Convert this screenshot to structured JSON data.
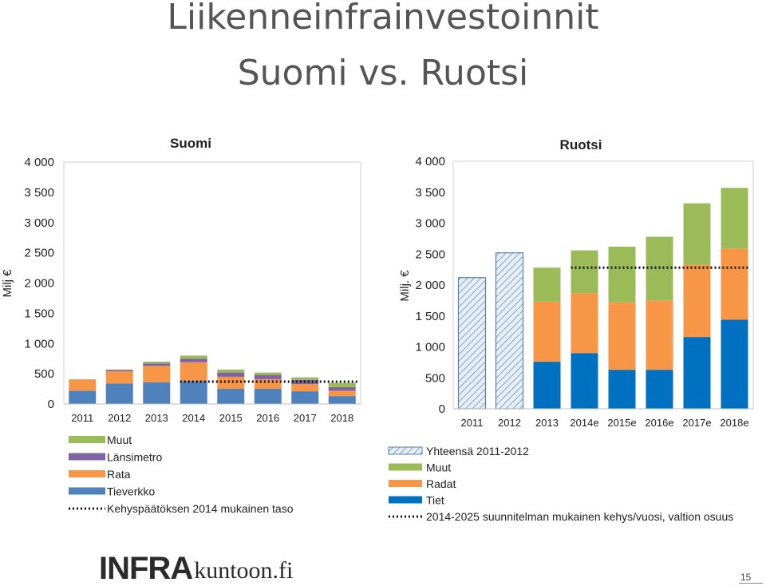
{
  "slide": {
    "title_line1": "Liikenneinfrainvestoinnit",
    "title_line2": "Suomi vs. Ruotsi",
    "logo_bold": "INFRA",
    "logo_rest": "kuntoon.fi",
    "page_number": "15"
  },
  "chart_data": [
    {
      "type": "bar",
      "stacked": true,
      "title": "Suomi",
      "ylabel": "Milj €",
      "ylim": [
        0,
        4000
      ],
      "yticks": [
        0,
        500,
        1000,
        1500,
        2000,
        2500,
        3000,
        3500,
        4000
      ],
      "ytick_labels": [
        "0",
        "500",
        "1 000",
        "1 500",
        "2 000",
        "2 500",
        "3 000",
        "3 500",
        "4 000"
      ],
      "categories": [
        "2011",
        "2012",
        "2013",
        "2014",
        "2015",
        "2016",
        "2017",
        "2018"
      ],
      "series": [
        {
          "name": "Tieverkko",
          "color": "#4f81bd",
          "values": [
            220,
            340,
            360,
            380,
            250,
            250,
            210,
            130
          ]
        },
        {
          "name": "Rata",
          "color": "#f79646",
          "values": [
            180,
            200,
            270,
            310,
            200,
            160,
            120,
            90
          ]
        },
        {
          "name": "Länsimetro",
          "color": "#8064a2",
          "values": [
            0,
            20,
            40,
            60,
            70,
            70,
            70,
            60
          ]
        },
        {
          "name": "Muut",
          "color": "#9bbb59",
          "values": [
            10,
            10,
            30,
            50,
            50,
            40,
            40,
            70
          ]
        }
      ],
      "reference_line": {
        "name": "Kehyspäätöksen 2014 mukainen taso",
        "value": 370,
        "from": "2014",
        "to": "2018"
      },
      "legend_order": [
        "Muut",
        "Länsimetro",
        "Rata",
        "Tieverkko",
        "Kehyspäätöksen 2014 mukainen taso"
      ],
      "legend_position": "bottom"
    },
    {
      "type": "bar",
      "stacked": true,
      "title": "Ruotsi",
      "ylabel": "Milj. €",
      "ylim": [
        0,
        4000
      ],
      "yticks": [
        0,
        500,
        1000,
        1500,
        2000,
        2500,
        3000,
        3500,
        4000
      ],
      "ytick_labels": [
        "0",
        "500",
        "1 000",
        "1 500",
        "2 000",
        "2 500",
        "3 000",
        "3 500",
        "4 000"
      ],
      "categories": [
        "2011",
        "2012",
        "2013",
        "2014e",
        "2015e",
        "2016e",
        "2017e",
        "2018e"
      ],
      "series": [
        {
          "name": "Yhteensä 2011-2012",
          "color": "#dbe5f1",
          "pattern": "hatch",
          "values": [
            2120,
            2520,
            0,
            0,
            0,
            0,
            0,
            0
          ]
        },
        {
          "name": "Tiet",
          "color": "#0070c0",
          "values": [
            0,
            0,
            760,
            900,
            630,
            630,
            1160,
            1440
          ]
        },
        {
          "name": "Radat",
          "color": "#f79646",
          "values": [
            0,
            0,
            970,
            970,
            1090,
            1120,
            1170,
            1150
          ]
        },
        {
          "name": "Muut",
          "color": "#9bbb59",
          "values": [
            0,
            0,
            550,
            690,
            900,
            1030,
            990,
            980
          ]
        }
      ],
      "reference_line": {
        "name": "2014-2025 suunnitelman mukainen kehys/vuosi, valtion osuus",
        "value": 2280,
        "from": "2014e",
        "to": "2018e"
      },
      "legend_order": [
        "Yhteensä 2011-2012",
        "Muut",
        "Radat",
        "Tiet",
        "2014-2025 suunnitelman mukainen kehys/vuosi, valtion osuus"
      ],
      "legend_position": "bottom"
    }
  ]
}
